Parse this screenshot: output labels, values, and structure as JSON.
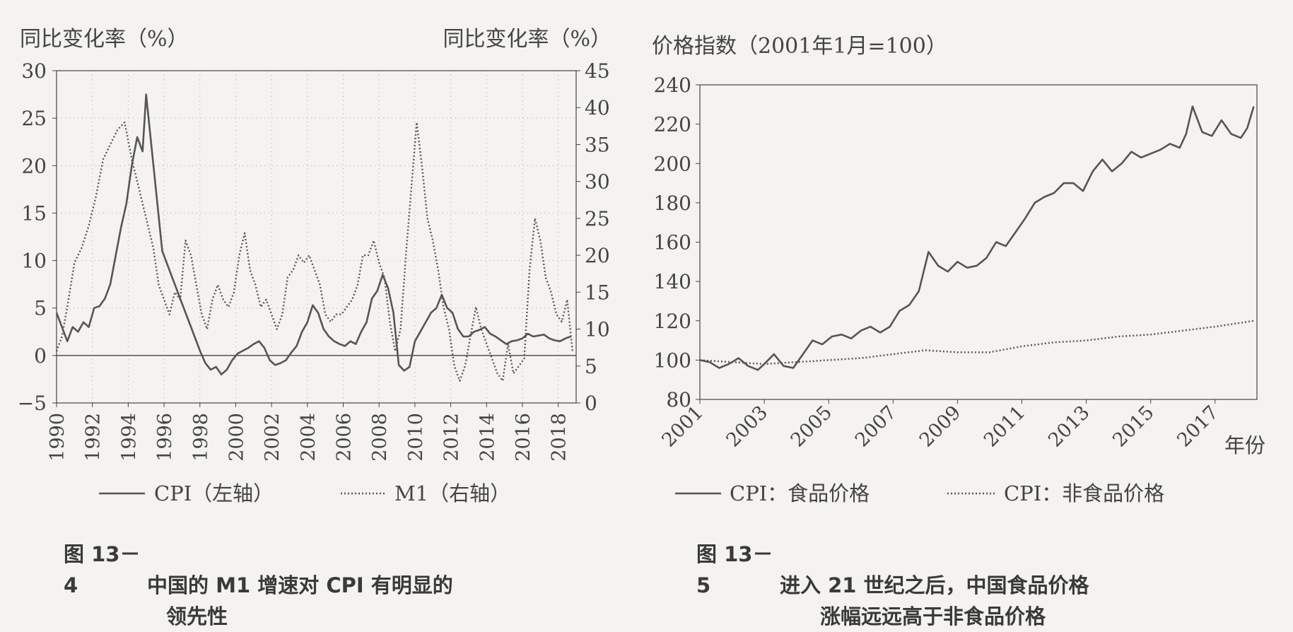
{
  "figures": [
    {
      "caption_number": "图 13－4",
      "caption_line1": "中国的 M1 增速对 CPI 有明显的",
      "caption_line2": "领先性"
    },
    {
      "caption_number": "图 13－5",
      "caption_line1": "进入 21 世纪之后，中国食品价格",
      "caption_line2": "涨幅远远高于非食品价格"
    }
  ],
  "chart_data": [
    {
      "type": "line",
      "title": "",
      "ylabel_left": "同比变化率（%）",
      "ylabel_right": "同比变化率（%）",
      "xlabel": "",
      "xlim": [
        1990,
        2019
      ],
      "ylim_left": [
        -5,
        30
      ],
      "ylim_right": [
        0,
        45
      ],
      "yticks_left": [
        -5,
        0,
        5,
        10,
        15,
        20,
        25,
        30
      ],
      "yticks_right": [
        0,
        5,
        10,
        15,
        20,
        25,
        30,
        35,
        40,
        45
      ],
      "xticks": [
        "1990",
        "1992",
        "1994",
        "1996",
        "1998",
        "2000",
        "2002",
        "2004",
        "2006",
        "2008",
        "2010",
        "2012",
        "2014",
        "2016",
        "2018"
      ],
      "grid": true,
      "legend_position": "bottom",
      "series": [
        {
          "name": "CPI（左轴）",
          "axis": "left",
          "style": "solid",
          "x": [
            1990,
            1990.3,
            1990.6,
            1990.9,
            1991.2,
            1991.5,
            1991.8,
            1992.1,
            1992.4,
            1992.7,
            1993.0,
            1993.3,
            1993.6,
            1993.9,
            1994.2,
            1994.5,
            1994.8,
            1995.0,
            1995.3,
            1995.6,
            1995.9,
            1996.2,
            1996.5,
            1996.8,
            1997.1,
            1997.4,
            1997.7,
            1998.0,
            1998.3,
            1998.6,
            1998.9,
            1999.2,
            1999.5,
            1999.8,
            2000.1,
            2000.4,
            2000.7,
            2001.0,
            2001.3,
            2001.6,
            2001.9,
            2002.2,
            2002.5,
            2002.8,
            2003.1,
            2003.4,
            2003.7,
            2004.0,
            2004.3,
            2004.6,
            2004.9,
            2005.2,
            2005.5,
            2005.8,
            2006.1,
            2006.4,
            2006.7,
            2007.0,
            2007.3,
            2007.6,
            2007.9,
            2008.2,
            2008.5,
            2008.8,
            2009.1,
            2009.4,
            2009.7,
            2010.0,
            2010.3,
            2010.6,
            2010.9,
            2011.2,
            2011.5,
            2011.8,
            2012.1,
            2012.4,
            2012.7,
            2013.0,
            2013.3,
            2013.6,
            2013.9,
            2014.2,
            2014.5,
            2014.8,
            2015.1,
            2015.4,
            2015.7,
            2016.0,
            2016.3,
            2016.6,
            2016.9,
            2017.2,
            2017.5,
            2017.8,
            2018.1,
            2018.4,
            2018.7
          ],
          "values": [
            4.5,
            3.0,
            1.5,
            3.0,
            2.5,
            3.5,
            3.0,
            5.0,
            5.2,
            6.0,
            7.5,
            10.5,
            13.5,
            16.0,
            20.0,
            23.0,
            21.5,
            27.5,
            22.0,
            16.5,
            11.0,
            9.5,
            8.0,
            6.5,
            5.0,
            3.5,
            2.0,
            0.5,
            -0.8,
            -1.5,
            -1.2,
            -2.0,
            -1.5,
            -0.5,
            0.2,
            0.5,
            0.8,
            1.2,
            1.5,
            0.8,
            -0.5,
            -1.0,
            -0.8,
            -0.5,
            0.3,
            1.0,
            2.5,
            3.5,
            5.3,
            4.5,
            2.8,
            2.0,
            1.5,
            1.2,
            1.0,
            1.5,
            1.2,
            2.5,
            3.5,
            6.0,
            6.8,
            8.5,
            7.1,
            4.5,
            -1.0,
            -1.6,
            -1.2,
            1.5,
            2.5,
            3.5,
            4.5,
            5.0,
            6.4,
            5.0,
            4.5,
            2.8,
            2.0,
            2.0,
            2.5,
            2.7,
            3.0,
            2.3,
            2.0,
            1.6,
            1.2,
            1.5,
            1.6,
            1.8,
            2.3,
            2.0,
            2.1,
            2.2,
            1.8,
            1.6,
            1.5,
            1.8,
            2.0
          ]
        },
        {
          "name": "M1（右轴）",
          "axis": "right",
          "style": "dotted",
          "x": [
            1990,
            1990.3,
            1990.6,
            1991.0,
            1991.4,
            1991.8,
            1992.2,
            1992.6,
            1993.0,
            1993.4,
            1993.8,
            1994.2,
            1994.5,
            1994.8,
            1995.1,
            1995.4,
            1995.7,
            1996.0,
            1996.3,
            1996.6,
            1996.9,
            1997.2,
            1997.5,
            1997.8,
            1998.1,
            1998.4,
            1998.7,
            1999.0,
            1999.3,
            1999.6,
            1999.9,
            2000.2,
            2000.5,
            2000.8,
            2001.1,
            2001.4,
            2001.7,
            2002.0,
            2002.3,
            2002.6,
            2002.9,
            2003.2,
            2003.5,
            2003.8,
            2004.1,
            2004.4,
            2004.7,
            2005.0,
            2005.3,
            2005.6,
            2005.9,
            2006.2,
            2006.5,
            2006.8,
            2007.1,
            2007.4,
            2007.7,
            2008.0,
            2008.3,
            2008.6,
            2008.9,
            2009.2,
            2009.5,
            2009.8,
            2010.1,
            2010.4,
            2010.7,
            2011.0,
            2011.3,
            2011.6,
            2011.9,
            2012.2,
            2012.5,
            2012.8,
            2013.1,
            2013.4,
            2013.7,
            2014.0,
            2014.3,
            2014.6,
            2014.9,
            2015.2,
            2015.5,
            2015.8,
            2016.1,
            2016.4,
            2016.7,
            2017.0,
            2017.3,
            2017.6,
            2017.9,
            2018.2,
            2018.5,
            2018.8
          ],
          "values": [
            7,
            9,
            13,
            19,
            21,
            24,
            28,
            33,
            35,
            37,
            38,
            33,
            30,
            27,
            24,
            21,
            16,
            14,
            12,
            15,
            14,
            22,
            20,
            16,
            12,
            10,
            14,
            16,
            14,
            13,
            15,
            20,
            23,
            18,
            16,
            13,
            14,
            12,
            10,
            12,
            17,
            18,
            20,
            19,
            20,
            18,
            16,
            12,
            11,
            12,
            12,
            13,
            14,
            16,
            20,
            20,
            22,
            19,
            17,
            11,
            7,
            10,
            20,
            29,
            38,
            32,
            25,
            22,
            18,
            13,
            10,
            5,
            3,
            5,
            9,
            13,
            10,
            8,
            6,
            4,
            3,
            8,
            4,
            5,
            6,
            18,
            25,
            22,
            17,
            15,
            12,
            11,
            14,
            7
          ]
        }
      ]
    },
    {
      "type": "line",
      "title": "",
      "ylabel": "价格指数（2001年1月=100）",
      "xlabel": "年份",
      "xlim": [
        2001,
        2018.3
      ],
      "ylim": [
        80,
        240
      ],
      "yticks": [
        80,
        100,
        120,
        140,
        160,
        180,
        200,
        220,
        240
      ],
      "xticks": [
        "2001",
        "2003",
        "2005",
        "2007",
        "2009",
        "2011",
        "2013",
        "2015",
        "2017"
      ],
      "grid": false,
      "legend_position": "bottom",
      "series": [
        {
          "name": "CPI：食品价格",
          "style": "solid",
          "x": [
            2001,
            2001.3,
            2001.6,
            2001.9,
            2002.2,
            2002.5,
            2002.8,
            2003.0,
            2003.3,
            2003.6,
            2003.9,
            2004.2,
            2004.5,
            2004.8,
            2005.1,
            2005.4,
            2005.7,
            2006.0,
            2006.3,
            2006.6,
            2006.9,
            2007.2,
            2007.5,
            2007.8,
            2008.1,
            2008.4,
            2008.7,
            2009.0,
            2009.3,
            2009.6,
            2009.9,
            2010.2,
            2010.5,
            2010.8,
            2011.1,
            2011.4,
            2011.7,
            2012.0,
            2012.3,
            2012.6,
            2012.9,
            2013.2,
            2013.5,
            2013.8,
            2014.1,
            2014.4,
            2014.7,
            2015.0,
            2015.3,
            2015.6,
            2015.9,
            2016.1,
            2016.3,
            2016.6,
            2016.9,
            2017.2,
            2017.5,
            2017.8,
            2018.0,
            2018.2
          ],
          "values": [
            100,
            99,
            96,
            98,
            101,
            97,
            95,
            98,
            103,
            97,
            96,
            103,
            110,
            108,
            112,
            113,
            111,
            115,
            117,
            114,
            117,
            125,
            128,
            135,
            155,
            148,
            145,
            150,
            147,
            148,
            152,
            160,
            158,
            165,
            172,
            180,
            183,
            185,
            190,
            190,
            186,
            196,
            202,
            196,
            200,
            206,
            203,
            205,
            207,
            210,
            208,
            215,
            229,
            216,
            214,
            222,
            215,
            213,
            218,
            229
          ]
        },
        {
          "name": "CPI：非食品价格",
          "style": "dotted",
          "x": [
            2001,
            2002,
            2003,
            2004,
            2005,
            2006,
            2007,
            2008,
            2009,
            2010,
            2011,
            2012,
            2013,
            2014,
            2015,
            2016,
            2017,
            2018.2
          ],
          "values": [
            100,
            99,
            98,
            99,
            100,
            101,
            103,
            105,
            104,
            104,
            107,
            109,
            110,
            112,
            113,
            115,
            117,
            120
          ]
        }
      ]
    }
  ]
}
